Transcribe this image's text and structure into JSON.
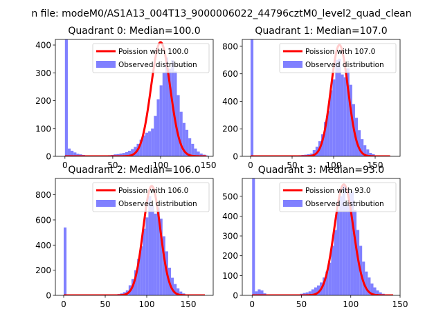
{
  "suptitle": "n file: modeM0/AS1A13_004T13_9000006022_44796cztM0_level2_quad_clean",
  "colors": {
    "poisson": "#ff0000",
    "observed": "#8080ff"
  },
  "chart_data": [
    {
      "type": "bar",
      "title": "Quadrant 0: Median=100.0",
      "legend": {
        "placement": "top-right",
        "poisson_label": "Poission with 100.0",
        "observed_label": "Observed distribution"
      },
      "xlim": [
        -10,
        155
      ],
      "ylim": [
        0,
        420
      ],
      "xticks": [
        0,
        50,
        100,
        150
      ],
      "yticks": [
        0,
        100,
        200,
        300,
        400
      ],
      "poisson_mean": 100,
      "poisson_peak": 410,
      "poisson_range": [
        0,
        148
      ],
      "bins": {
        "start": 0,
        "width": 3.0,
        "counts": [
          420,
          28,
          20,
          14,
          9,
          7,
          5,
          3,
          2,
          2,
          1,
          1,
          1,
          2,
          3,
          4,
          5,
          7,
          8,
          10,
          12,
          15,
          20,
          26,
          34,
          45,
          60,
          75,
          85,
          90,
          100,
          145,
          205,
          255,
          300,
          355,
          315,
          345,
          305,
          220,
          160,
          120,
          95,
          65,
          45,
          28,
          17,
          10,
          6,
          3
        ]
      }
    },
    {
      "type": "bar",
      "title": "Quadrant 1: Median=107.0",
      "legend": {
        "placement": "top-right",
        "poisson_label": "Poission with 107.0",
        "observed_label": "Observed distribution"
      },
      "xlim": [
        -10,
        180
      ],
      "ylim": [
        0,
        850
      ],
      "xticks": [
        0,
        50,
        100,
        150
      ],
      "yticks": [
        0,
        200,
        400,
        600,
        800
      ],
      "poisson_mean": 107,
      "poisson_peak": 810,
      "poisson_range": [
        0,
        168
      ],
      "bins": {
        "start": 0,
        "width": 3.4,
        "counts": [
          850,
          3,
          2,
          2,
          1,
          1,
          1,
          1,
          1,
          1,
          2,
          2,
          3,
          3,
          4,
          5,
          6,
          8,
          10,
          12,
          15,
          20,
          45,
          70,
          110,
          160,
          250,
          330,
          480,
          560,
          700,
          710,
          595,
          575,
          640,
          520,
          380,
          280,
          190,
          125,
          80,
          50,
          25,
          15,
          6,
          3,
          2,
          1,
          1,
          1
        ]
      }
    },
    {
      "type": "bar",
      "title": "Quadrant 2: Median=106.0",
      "legend": {
        "placement": "top-right",
        "poisson_label": "Poission with 106.0",
        "observed_label": "Observed distribution"
      },
      "xlim": [
        -10,
        180
      ],
      "ylim": [
        0,
        930
      ],
      "xticks": [
        0,
        50,
        100,
        150
      ],
      "yticks": [
        0,
        200,
        400,
        600,
        800
      ],
      "poisson_mean": 106,
      "poisson_peak": 870,
      "poisson_range": [
        0,
        170
      ],
      "bins": {
        "start": 0,
        "width": 3.4,
        "counts": [
          540,
          2,
          1,
          1,
          1,
          1,
          1,
          1,
          1,
          1,
          1,
          1,
          1,
          2,
          2,
          3,
          4,
          5,
          7,
          10,
          15,
          25,
          40,
          80,
          130,
          200,
          290,
          390,
          530,
          620,
          790,
          720,
          650,
          700,
          610,
          470,
          350,
          220,
          140,
          90,
          55,
          30,
          15,
          8,
          4,
          2,
          1,
          1,
          1,
          1
        ]
      }
    },
    {
      "type": "bar",
      "title": "Quadrant 3: Median=93.0",
      "legend": {
        "placement": "top-right",
        "poisson_label": "Poission with 93.0",
        "observed_label": "Observed distribution"
      },
      "xlim": [
        -10,
        150
      ],
      "ylim": [
        0,
        590
      ],
      "xticks": [
        0,
        50,
        100,
        150
      ],
      "yticks": [
        0,
        100,
        200,
        300,
        400,
        500
      ],
      "poisson_mean": 93,
      "poisson_peak": 560,
      "poisson_range": [
        0,
        143
      ],
      "bins": {
        "start": 0,
        "width": 2.86,
        "counts": [
          590,
          20,
          30,
          25,
          10,
          5,
          3,
          2,
          2,
          1,
          1,
          1,
          1,
          1,
          2,
          3,
          5,
          8,
          12,
          15,
          20,
          30,
          40,
          50,
          65,
          90,
          120,
          165,
          250,
          330,
          430,
          500,
          560,
          455,
          520,
          525,
          430,
          330,
          250,
          170,
          120,
          90,
          60,
          40,
          25,
          15,
          8,
          5,
          3,
          2
        ]
      }
    }
  ]
}
